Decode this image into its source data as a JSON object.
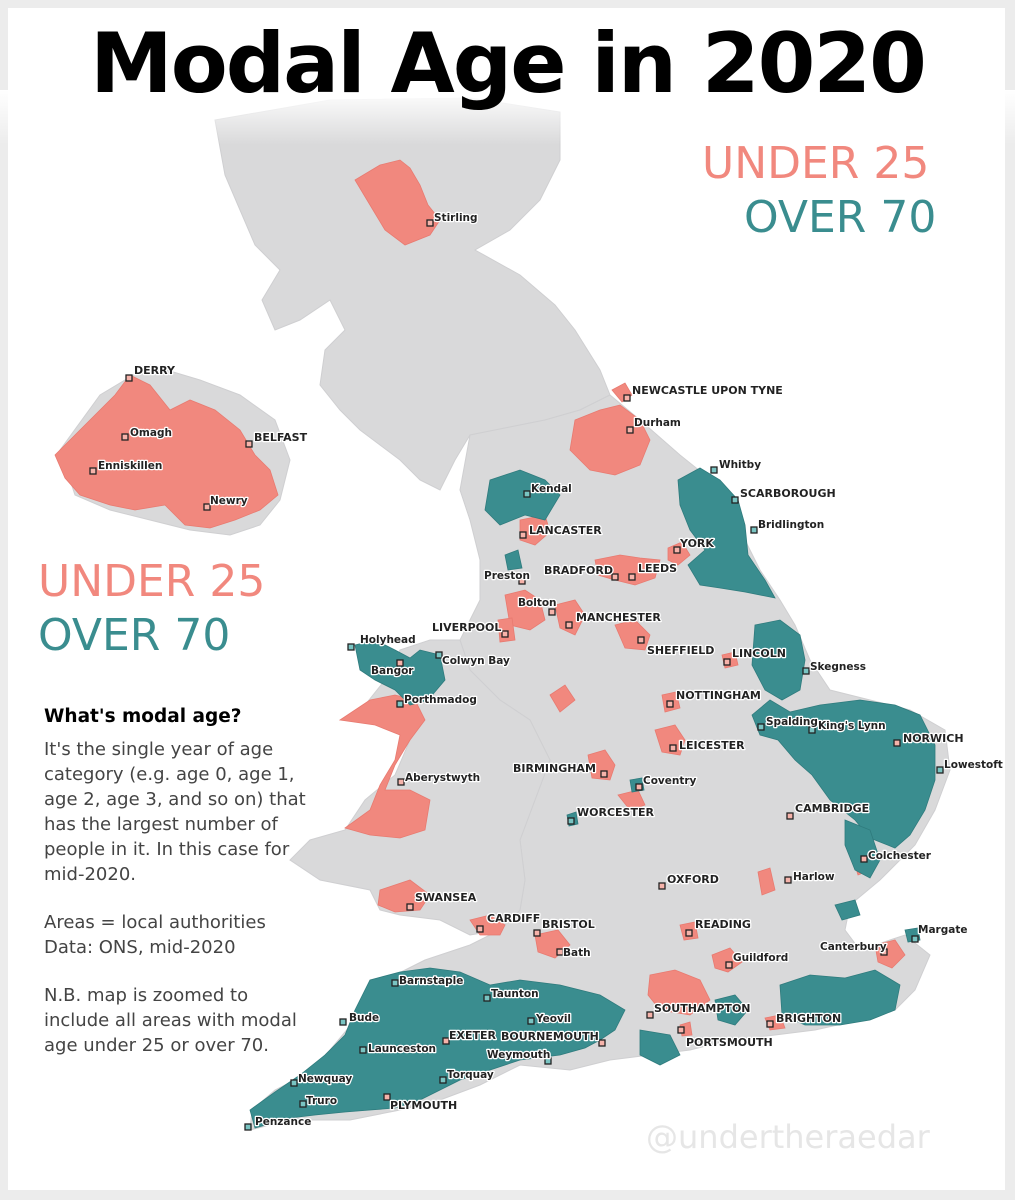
{
  "title": "Modal Age in 2020",
  "legend": {
    "under_label": "UNDER 25",
    "over_label": "OVER 70"
  },
  "colors": {
    "under_25": "#f1887e",
    "over_70": "#3a8d8f",
    "land": "#d9d9da",
    "background": "#ffffff"
  },
  "info": {
    "heading": "What's modal age?",
    "body": "It's the single year of age category (e.g. age 0, age 1, age 2, age 3, and so on) that has the largest number of people in it. In this case for mid-2020.",
    "sources": "Areas = local authorities\nData: ONS, mid-2020",
    "note": "N.B. map is zoomed to include all areas with modal age under 25 or over 70."
  },
  "watermark": "@undertheraedar",
  "places": [
    {
      "name": "Stirling",
      "category": "under_25"
    },
    {
      "name": "DERRY",
      "category": "under_25"
    },
    {
      "name": "Omagh",
      "category": "under_25"
    },
    {
      "name": "BELFAST",
      "category": "under_25"
    },
    {
      "name": "Enniskillen",
      "category": "under_25"
    },
    {
      "name": "Newry",
      "category": "under_25"
    },
    {
      "name": "NEWCASTLE UPON TYNE",
      "category": "under_25"
    },
    {
      "name": "Durham",
      "category": "under_25"
    },
    {
      "name": "Whitby",
      "category": "over_70"
    },
    {
      "name": "Kendal",
      "category": "over_70"
    },
    {
      "name": "SCARBOROUGH",
      "category": "over_70"
    },
    {
      "name": "Bridlington",
      "category": "over_70"
    },
    {
      "name": "LANCASTER",
      "category": "under_25"
    },
    {
      "name": "YORK",
      "category": "under_25"
    },
    {
      "name": "Preston",
      "category": "under_25"
    },
    {
      "name": "BRADFORD",
      "category": "under_25"
    },
    {
      "name": "LEEDS",
      "category": "under_25"
    },
    {
      "name": "Bolton",
      "category": "under_25"
    },
    {
      "name": "LIVERPOOL",
      "category": "under_25"
    },
    {
      "name": "MANCHESTER",
      "category": "under_25"
    },
    {
      "name": "Holyhead",
      "category": "over_70"
    },
    {
      "name": "Colwyn Bay",
      "category": "over_70"
    },
    {
      "name": "Bangor",
      "category": "under_25"
    },
    {
      "name": "SHEFFIELD",
      "category": "under_25"
    },
    {
      "name": "LINCOLN",
      "category": "under_25"
    },
    {
      "name": "Skegness",
      "category": "over_70"
    },
    {
      "name": "Porthmadog",
      "category": "over_70"
    },
    {
      "name": "NOTTINGHAM",
      "category": "under_25"
    },
    {
      "name": "Spalding",
      "category": "over_70"
    },
    {
      "name": "King's Lynn",
      "category": "over_70"
    },
    {
      "name": "NORWICH",
      "category": "under_25"
    },
    {
      "name": "LEICESTER",
      "category": "under_25"
    },
    {
      "name": "Lowestoft",
      "category": "over_70"
    },
    {
      "name": "Aberystwyth",
      "category": "under_25"
    },
    {
      "name": "BIRMINGHAM",
      "category": "under_25"
    },
    {
      "name": "Coventry",
      "category": "under_25"
    },
    {
      "name": "WORCESTER",
      "category": "over_70"
    },
    {
      "name": "CAMBRIDGE",
      "category": "under_25"
    },
    {
      "name": "Colchester",
      "category": "under_25"
    },
    {
      "name": "OXFORD",
      "category": "under_25"
    },
    {
      "name": "Harlow",
      "category": "under_25"
    },
    {
      "name": "SWANSEA",
      "category": "under_25"
    },
    {
      "name": "CARDIFF",
      "category": "under_25"
    },
    {
      "name": "BRISTOL",
      "category": "under_25"
    },
    {
      "name": "READING",
      "category": "under_25"
    },
    {
      "name": "Margate",
      "category": "over_70"
    },
    {
      "name": "Bath",
      "category": "under_25"
    },
    {
      "name": "Canterbury",
      "category": "under_25"
    },
    {
      "name": "Guildford",
      "category": "under_25"
    },
    {
      "name": "Barnstaple",
      "category": "over_70"
    },
    {
      "name": "Taunton",
      "category": "over_70"
    },
    {
      "name": "Yeovil",
      "category": "over_70"
    },
    {
      "name": "Bude",
      "category": "over_70"
    },
    {
      "name": "SOUTHAMPTON",
      "category": "under_25"
    },
    {
      "name": "EXETER",
      "category": "under_25"
    },
    {
      "name": "BOURNEMOUTH",
      "category": "under_25"
    },
    {
      "name": "BRIGHTON",
      "category": "under_25"
    },
    {
      "name": "Launceston",
      "category": "over_70"
    },
    {
      "name": "PORTSMOUTH",
      "category": "under_25"
    },
    {
      "name": "Weymouth",
      "category": "over_70"
    },
    {
      "name": "Torquay",
      "category": "over_70"
    },
    {
      "name": "Newquay",
      "category": "over_70"
    },
    {
      "name": "Truro",
      "category": "over_70"
    },
    {
      "name": "PLYMOUTH",
      "category": "under_25"
    },
    {
      "name": "Penzance",
      "category": "over_70"
    }
  ]
}
